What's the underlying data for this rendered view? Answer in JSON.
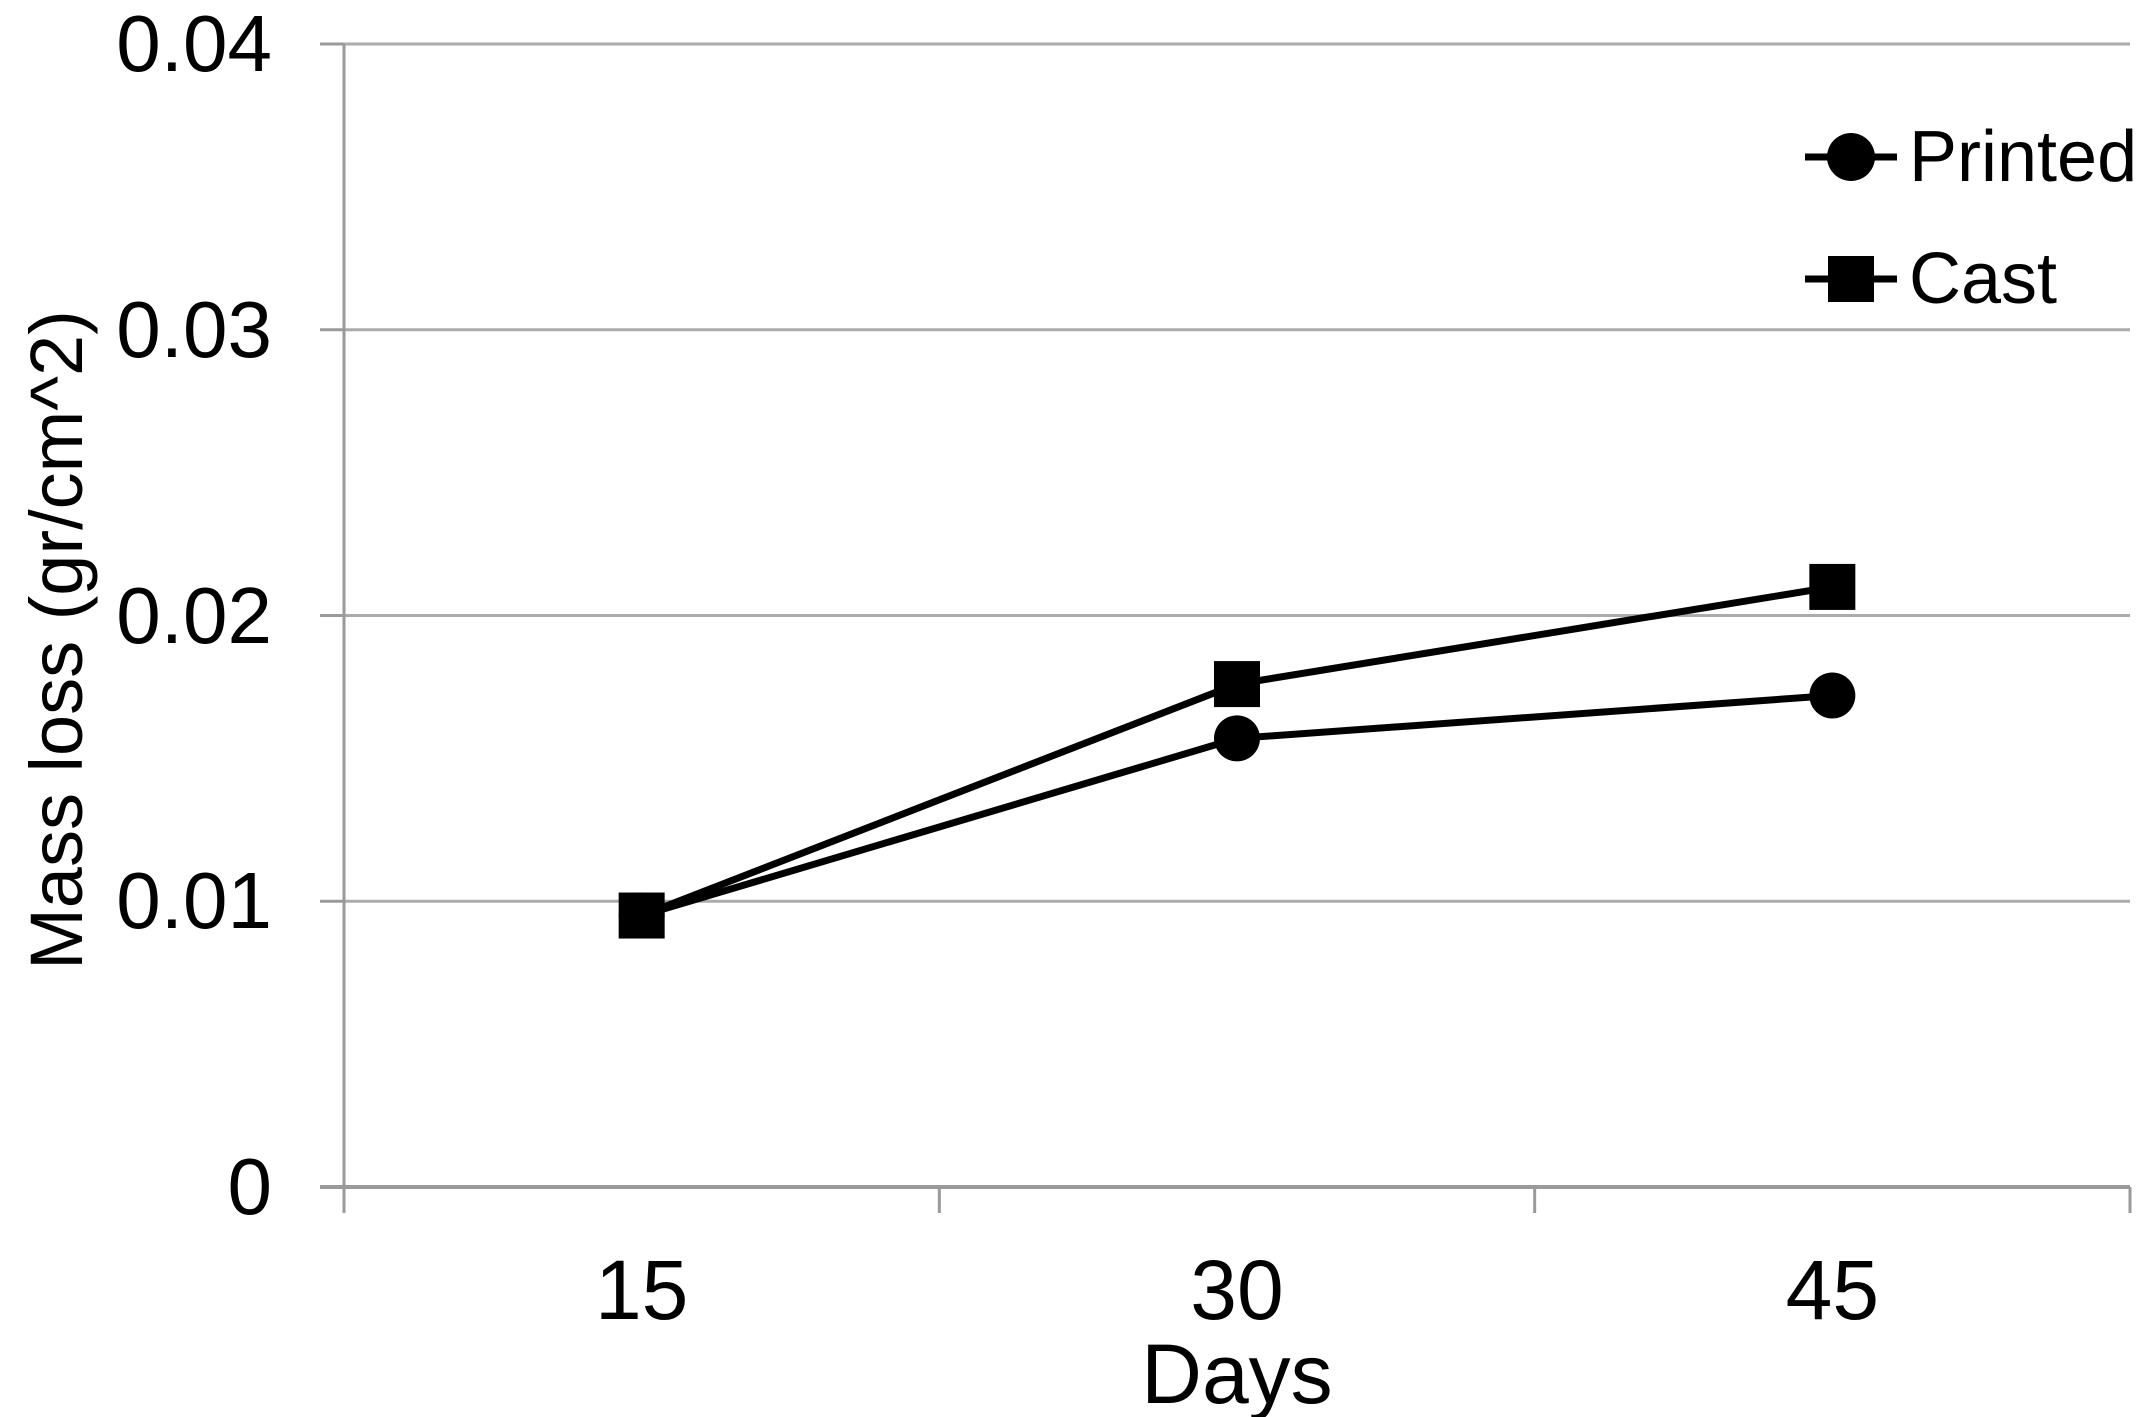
{
  "chart_data": {
    "type": "line",
    "categories": [
      "15",
      "30",
      "45"
    ],
    "x_axis_label": "Days",
    "y_axis_label": "Mass loss (gr/cm^2)",
    "ylim": [
      0,
      0.04
    ],
    "yticks": [
      0,
      0.01,
      0.02,
      0.03,
      0.04
    ],
    "ytick_labels": [
      "0",
      "0.01",
      "0.02",
      "0.03",
      "0.04"
    ],
    "grid": "horizontal",
    "legend_position": "top-right",
    "series": [
      {
        "name": "Printed",
        "marker": "circle",
        "values": [
          0.0095,
          0.0157,
          0.0172
        ]
      },
      {
        "name": "Cast",
        "marker": "square",
        "values": [
          0.0095,
          0.0176,
          0.021
        ]
      }
    ],
    "colors": {
      "series_line": "#000000",
      "marker_fill": "#000000",
      "gridline": "#ababab",
      "axis_line": "#9a9a9a",
      "text": "#000000",
      "background": "#ffffff"
    }
  }
}
